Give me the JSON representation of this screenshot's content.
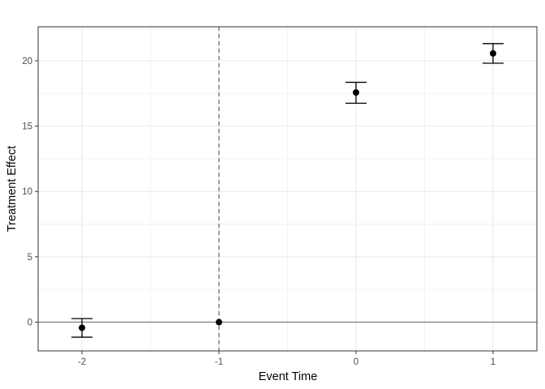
{
  "chart_data": {
    "type": "scatter",
    "title": "",
    "xlabel": "Event Time",
    "ylabel": "Treatment Effect",
    "xlim": [
      -2.32,
      1.32
    ],
    "ylim": [
      -2.2,
      22.6
    ],
    "x_ticks": [
      -2,
      -1,
      0,
      1
    ],
    "x_tick_labels": [
      "-2",
      "-1",
      "0",
      "1"
    ],
    "y_ticks": [
      0,
      5,
      10,
      15,
      20
    ],
    "y_tick_labels": [
      "0",
      "5",
      "10",
      "15",
      "20"
    ],
    "grid": true,
    "points": [
      {
        "x": -2,
        "y": -0.43,
        "ci_low": -1.15,
        "ci_high": 0.27
      },
      {
        "x": -1,
        "y": 0,
        "ci_low": 0,
        "ci_high": 0
      },
      {
        "x": 0,
        "y": 17.57,
        "ci_low": 16.75,
        "ci_high": 18.35
      },
      {
        "x": 1,
        "y": 20.56,
        "ci_low": 19.81,
        "ci_high": 21.31
      }
    ],
    "reference_lines": {
      "horizontal_y": 0,
      "vertical_dashed_x": -1
    },
    "colors": {
      "points": "#000000",
      "grid": "#ebebeb",
      "hline": "#7f7f7f",
      "vline": "#555555"
    }
  }
}
